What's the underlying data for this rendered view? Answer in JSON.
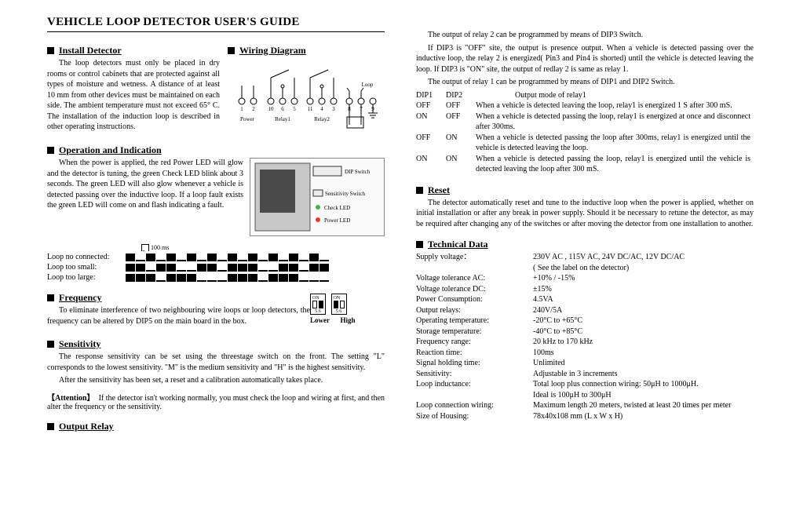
{
  "doc_title": "VEHICLE LOOP DETECTOR USER'S GUIDE",
  "install": {
    "heading": "Install Detector",
    "text": "The loop detectors must only be placed in dry rooms or control cabinets that are protected against all types of moisture and wetness. A distance of at least 10 mm from other devices must be maintained on each side. The ambient temperature must not exceed 65° C. The installation of the induction loop is described in other operating instructions."
  },
  "wiring": {
    "heading": "Wiring Diagram",
    "terminals": [
      "1",
      "2",
      "10",
      "6",
      "5",
      "11",
      "4",
      "3",
      "8",
      "7",
      "9"
    ],
    "labels": [
      "Power",
      "Relay1",
      "Relay2",
      "Loop"
    ]
  },
  "operation": {
    "heading": "Operation and Indication",
    "text": "When the power is applied, the red Power LED will glow and the detector is tuning, the green Check LED blink about 3 seconds. The green LED will also glow whenever a vehicle is detected passing over the inductive loop. If a loop fault exists the green LED will come on and flash indicating a fault.",
    "panel_labels": [
      "DIP Switch",
      "Sensitivity Switch",
      "Check LED",
      "Power LED"
    ]
  },
  "loop_states": {
    "tick": "100 ms",
    "rows": [
      {
        "label": "Loop no connected:",
        "pattern": [
          1,
          0,
          1,
          0,
          1,
          0,
          1,
          0,
          1,
          0,
          1,
          0,
          1,
          0,
          1,
          0,
          1,
          0,
          1,
          0
        ]
      },
      {
        "label": "Loop too small:",
        "pattern": [
          1,
          1,
          0,
          1,
          1,
          0,
          0,
          1,
          1,
          0,
          1,
          1,
          1,
          0,
          0,
          1,
          1,
          0,
          1,
          1
        ]
      },
      {
        "label": "Loop too large:",
        "pattern": [
          1,
          1,
          1,
          0,
          1,
          1,
          1,
          0,
          0,
          0,
          1,
          1,
          1,
          0,
          1,
          1,
          1,
          0,
          0,
          0
        ]
      }
    ]
  },
  "frequency": {
    "heading": "Frequency",
    "text": "To eliminate interference of two neighbouring wire loops or loop detectors, the frequency can be altered by DIP5 on the main board in the box.",
    "switches": [
      "Lower",
      "High"
    ]
  },
  "sensitivity": {
    "heading": "Sensitivity",
    "text1": "The response sensitivity can be set using the threestage switch on the front. The setting \"L\" corresponds to the lowest sensitivity. \"M\" is the medium sensitivity and \"H\" is the highest sensitivity.",
    "text2": "After the sensitivity has been set, a reset and a calibration automatically takes place."
  },
  "attention": {
    "label": "【Attention】",
    "text": "If the detector isn't working normally, you must check the loop and wiring at first, and then alter the frequency or the sensitivity."
  },
  "output_relay": {
    "heading": "Output Relay",
    "intro1": "The output of relay 2 can be programmed by means of DIP3 Switch.",
    "intro2": "If DIP3 is \"OFF\" site, the output is presence output. When a vehicle is detected passing over the inductive loop, the relay 2 is energized( Pin3 and Pin4 is shorted) until the vehicle is detected leaving the loop. If DIP3 is \"ON\" site, the output of redlay 2 is same as relay 1.",
    "intro3": "The output of relay 1 can be programmed by means of DIP1 and DIP2 Switch.",
    "table": {
      "header": [
        "DIP1",
        "DIP2",
        "Output mode of relay1"
      ],
      "rows": [
        [
          "OFF",
          "OFF",
          "When a vehicle is detected leaving the loop, relay1 is energized 1 S after 300 mS."
        ],
        [
          "ON",
          "OFF",
          "When a vehicle is detected passing the loop, relay1 is energized at once and disconnect after 300ms."
        ],
        [
          "OFF",
          "ON",
          "When a vehicle is detected passing the loop after 300ms, relay1 is energized until the vehicle is detected leaving the loop."
        ],
        [
          "ON",
          "ON",
          "When a vehicle is detected passing the loop, relay1 is energized until the vehicle is detected leaving the loop after 300 mS."
        ]
      ]
    }
  },
  "reset": {
    "heading": "Reset",
    "text": "The detector automatically reset and tune to the inductive loop when the power is applied, whether on initial installation or after any break in power supply. Should it be necessary to retune the detector, as may be required after changing any of the switches or after moving the detector from one installation to another."
  },
  "tech": {
    "heading": "Technical Data",
    "rows": [
      [
        "Supply voltage：",
        "230V AC , 115V AC, 24V DC/AC, 12V DC/AC\n( See the label on the detector)"
      ],
      [
        "Voltage tolerance AC:",
        "+10% / -15%"
      ],
      [
        "Voltage tolerance DC:",
        "±15%"
      ],
      [
        "Power Consumption:",
        "4.5VA"
      ],
      [
        "Output relays:",
        "240V/5A"
      ],
      [
        "Operating temperature:",
        "-20°C to +65°C"
      ],
      [
        "Storage temperature:",
        "-40°C to +85°C"
      ],
      [
        "Frequency range:",
        "20 kHz to 170 kHz"
      ],
      [
        "Reaction time:",
        "100ms"
      ],
      [
        "Signal holding time:",
        "Unlimited"
      ],
      [
        "Sensitivity:",
        "Adjustable in 3 increments"
      ],
      [
        "Loop inductance:",
        "Total loop plus connection wiring: 50μH to 1000μH.\nIdeal is 100μH to 300μH"
      ],
      [
        "Loop connection wiring:",
        "Maximum length 20 meters, twisted at least 20 times per meter"
      ],
      [
        "Size of Housing:",
        "78x40x108 mm (L x W x H)"
      ]
    ]
  },
  "colors": {
    "text": "#000000",
    "bg": "#ffffff",
    "diagram_border": "#888888",
    "diagram_fill": "#fafafa"
  }
}
